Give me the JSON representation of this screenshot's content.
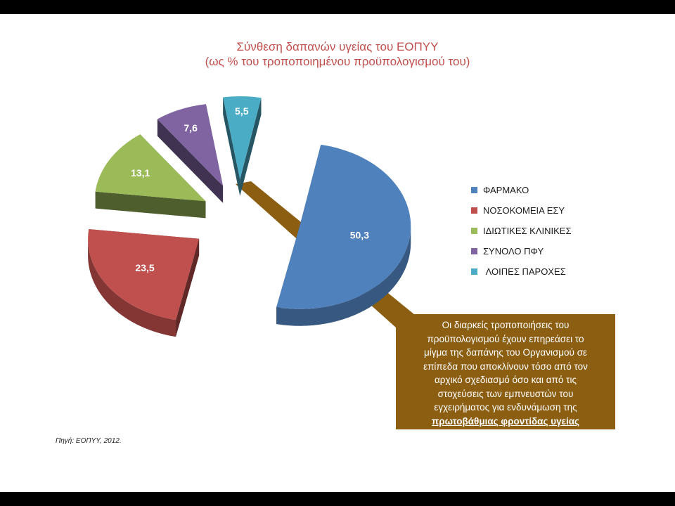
{
  "chart_data": {
    "type": "pie",
    "title": "Σύνθεση δαπανών υγείας του ΕΟΠΥΥ",
    "subtitle": "(ως % του τροποποιημένου προϋπολογισμού του)",
    "categories": [
      "ΦΑΡΜΑΚΟ",
      "ΝΟΣΟΚΟΜΕΙΑ ΕΣΥ",
      "ΙΔΙΩΤΙΚΕΣ ΚΛΙΝΙΚΕΣ",
      "ΣΥΝΟΛΟ ΠΦΥ",
      "ΛΟΙΠΕΣ ΠΑΡΟΧΕΣ"
    ],
    "values": [
      50.3,
      23.5,
      13.1,
      7.6,
      5.5
    ],
    "data_labels": [
      "50,3",
      "23,5",
      "13,1",
      "7,6",
      "5,5"
    ],
    "colors": [
      "#4f81bd",
      "#c0504d",
      "#9bbb59",
      "#8064a2",
      "#4bacc6"
    ],
    "style": "3d-exploded",
    "legend_position": "right"
  },
  "legend_items": [
    "ΦΑΡΜΑΚΟ",
    "ΝΟΣΟΚΟΜΕΙΑ ΕΣΥ",
    "ΙΔΙΩΤΙΚΕΣ ΚΛΙΝΙΚΕΣ",
    "ΣΥΝΟΛΟ ΠΦΥ",
    "ΛΟΙΠΕΣ ΠΑΡΟΧΕΣ"
  ],
  "callout": {
    "lines": [
      "Οι διαρκείς τροποποιήσεις του",
      "προϋπολογισμού έχουν επηρεάσει το",
      "μίγμα της δαπάνης του Οργανισμού σε",
      "επίπεδα που αποκλίνουν τόσο από τον",
      "αρχικό σχεδιασμό όσο και από τις",
      "στοχεύσεις των εμπνευστών του",
      "εγχειρήματος για ενδυνάμωση της"
    ],
    "emphasis": "πρωτοβάθμιας φροντίδας υγείας",
    "color": "#8b5e12"
  },
  "source": "Πηγή: ΕΟΠΥΥ, 2012."
}
